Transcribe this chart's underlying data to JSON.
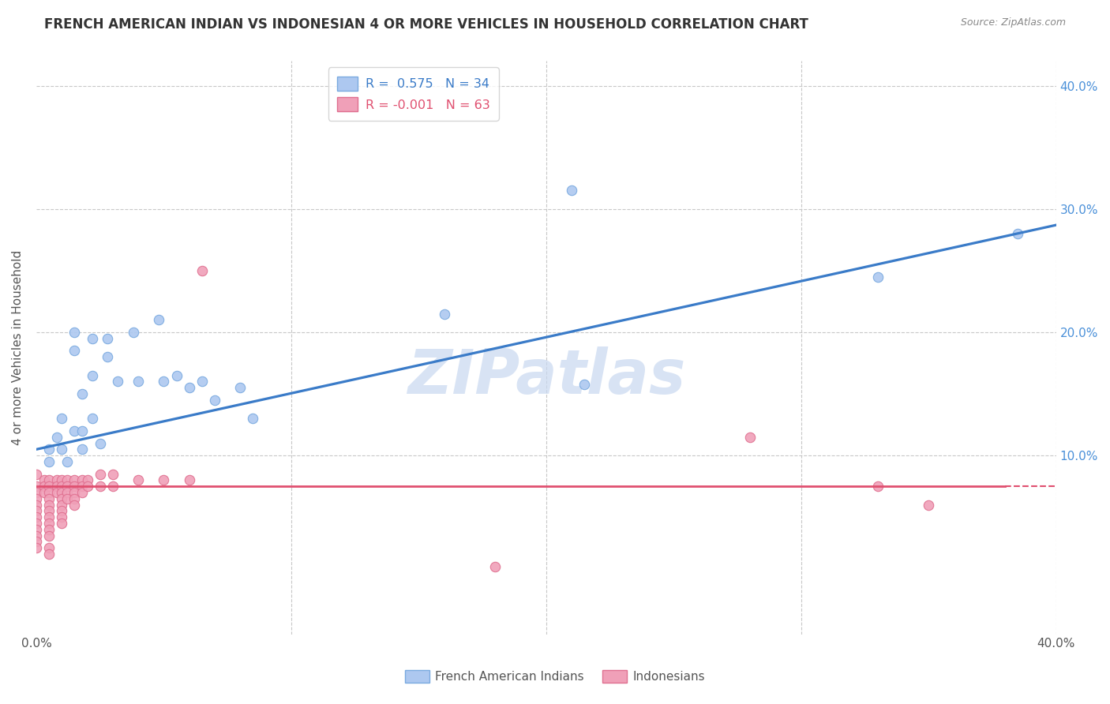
{
  "title": "FRENCH AMERICAN INDIAN VS INDONESIAN 4 OR MORE VEHICLES IN HOUSEHOLD CORRELATION CHART",
  "source": "Source: ZipAtlas.com",
  "ylabel": "4 or more Vehicles in Household",
  "xlim": [
    0.0,
    0.4
  ],
  "ylim": [
    -0.045,
    0.42
  ],
  "blue_R": 0.575,
  "blue_N": 34,
  "pink_R": -0.001,
  "pink_N": 63,
  "blue_line_x": [
    0.0,
    0.4
  ],
  "blue_line_y": [
    0.105,
    0.287
  ],
  "pink_line_x": [
    0.0,
    0.4
  ],
  "pink_line_y": [
    0.075,
    0.075
  ],
  "blue_scatter": [
    [
      0.005,
      0.105
    ],
    [
      0.005,
      0.095
    ],
    [
      0.008,
      0.115
    ],
    [
      0.01,
      0.13
    ],
    [
      0.01,
      0.105
    ],
    [
      0.012,
      0.095
    ],
    [
      0.015,
      0.12
    ],
    [
      0.015,
      0.2
    ],
    [
      0.015,
      0.185
    ],
    [
      0.018,
      0.15
    ],
    [
      0.018,
      0.12
    ],
    [
      0.018,
      0.105
    ],
    [
      0.022,
      0.195
    ],
    [
      0.022,
      0.165
    ],
    [
      0.022,
      0.13
    ],
    [
      0.025,
      0.11
    ],
    [
      0.028,
      0.195
    ],
    [
      0.028,
      0.18
    ],
    [
      0.032,
      0.16
    ],
    [
      0.038,
      0.2
    ],
    [
      0.04,
      0.16
    ],
    [
      0.048,
      0.21
    ],
    [
      0.05,
      0.16
    ],
    [
      0.055,
      0.165
    ],
    [
      0.06,
      0.155
    ],
    [
      0.065,
      0.16
    ],
    [
      0.07,
      0.145
    ],
    [
      0.08,
      0.155
    ],
    [
      0.085,
      0.13
    ],
    [
      0.16,
      0.215
    ],
    [
      0.21,
      0.315
    ],
    [
      0.215,
      0.158
    ],
    [
      0.33,
      0.245
    ],
    [
      0.385,
      0.28
    ]
  ],
  "pink_scatter": [
    [
      0.0,
      0.085
    ],
    [
      0.0,
      0.075
    ],
    [
      0.0,
      0.07
    ],
    [
      0.0,
      0.065
    ],
    [
      0.0,
      0.06
    ],
    [
      0.0,
      0.055
    ],
    [
      0.0,
      0.05
    ],
    [
      0.0,
      0.045
    ],
    [
      0.0,
      0.04
    ],
    [
      0.0,
      0.035
    ],
    [
      0.0,
      0.03
    ],
    [
      0.0,
      0.025
    ],
    [
      0.003,
      0.08
    ],
    [
      0.003,
      0.075
    ],
    [
      0.003,
      0.07
    ],
    [
      0.005,
      0.08
    ],
    [
      0.005,
      0.075
    ],
    [
      0.005,
      0.07
    ],
    [
      0.005,
      0.065
    ],
    [
      0.005,
      0.06
    ],
    [
      0.005,
      0.055
    ],
    [
      0.005,
      0.05
    ],
    [
      0.005,
      0.045
    ],
    [
      0.005,
      0.04
    ],
    [
      0.005,
      0.035
    ],
    [
      0.005,
      0.025
    ],
    [
      0.005,
      0.02
    ],
    [
      0.008,
      0.08
    ],
    [
      0.008,
      0.075
    ],
    [
      0.008,
      0.07
    ],
    [
      0.01,
      0.08
    ],
    [
      0.01,
      0.075
    ],
    [
      0.01,
      0.07
    ],
    [
      0.01,
      0.065
    ],
    [
      0.01,
      0.06
    ],
    [
      0.01,
      0.055
    ],
    [
      0.01,
      0.05
    ],
    [
      0.01,
      0.045
    ],
    [
      0.012,
      0.08
    ],
    [
      0.012,
      0.075
    ],
    [
      0.012,
      0.07
    ],
    [
      0.012,
      0.065
    ],
    [
      0.015,
      0.08
    ],
    [
      0.015,
      0.075
    ],
    [
      0.015,
      0.07
    ],
    [
      0.015,
      0.065
    ],
    [
      0.015,
      0.06
    ],
    [
      0.018,
      0.08
    ],
    [
      0.018,
      0.075
    ],
    [
      0.018,
      0.07
    ],
    [
      0.02,
      0.08
    ],
    [
      0.02,
      0.075
    ],
    [
      0.025,
      0.085
    ],
    [
      0.025,
      0.075
    ],
    [
      0.03,
      0.085
    ],
    [
      0.03,
      0.075
    ],
    [
      0.04,
      0.08
    ],
    [
      0.05,
      0.08
    ],
    [
      0.06,
      0.08
    ],
    [
      0.065,
      0.25
    ],
    [
      0.28,
      0.115
    ],
    [
      0.33,
      0.075
    ],
    [
      0.35,
      0.06
    ],
    [
      0.18,
      0.01
    ]
  ],
  "blue_line_color": "#3a7bc8",
  "pink_line_color": "#e05070",
  "blue_dot_facecolor": "#adc8f0",
  "blue_dot_edgecolor": "#7aaae0",
  "pink_dot_facecolor": "#f0a0b8",
  "pink_dot_edgecolor": "#e07090",
  "grid_color": "#c8c8c8",
  "watermark_text": "ZIPatlas",
  "watermark_color": "#c8d8f0",
  "legend_blue_label": "French American Indians",
  "legend_pink_label": "Indonesians",
  "right_axis_color": "#4a90d9",
  "title_color": "#333333",
  "source_color": "#888888"
}
